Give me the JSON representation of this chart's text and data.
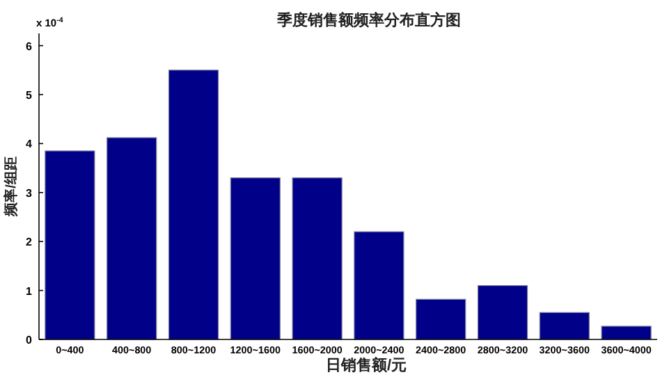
{
  "chart_data": {
    "type": "bar",
    "title": "季度销售额频率分布直方图",
    "xlabel": "日销售额/元",
    "ylabel": "频率/组距",
    "categories": [
      "0~400",
      "400~800",
      "800~1200",
      "1200~1600",
      "1600~2000",
      "2000~2400",
      "2400~2800",
      "2800~3200",
      "3200~3600",
      "3600~4000"
    ],
    "values": [
      3.85,
      4.12,
      5.5,
      3.3,
      3.3,
      2.2,
      0.82,
      1.1,
      0.55,
      0.27
    ],
    "color": "#000088",
    "ylim": [
      0,
      6.25
    ],
    "yticks": [
      0,
      1,
      2,
      3,
      4,
      5,
      6
    ],
    "annotations": [
      "x 10$^{-4}$"
    ]
  }
}
